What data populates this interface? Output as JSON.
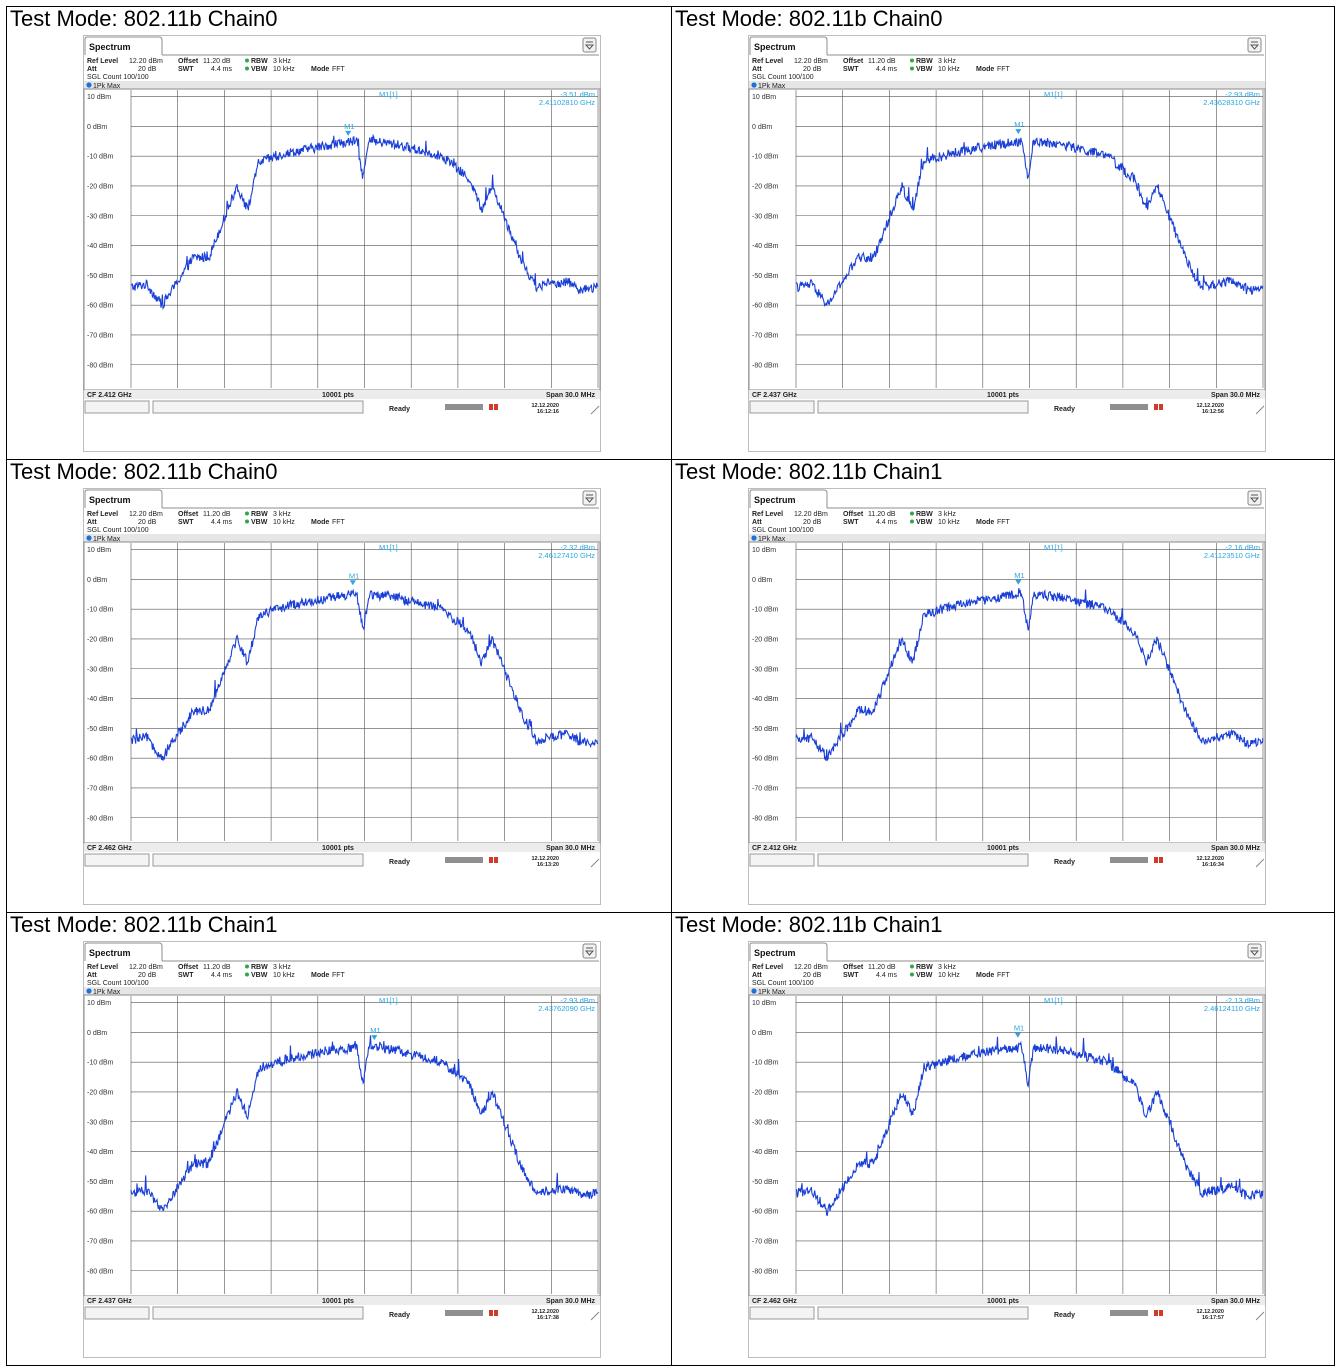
{
  "panels": [
    {
      "title": "Test Mode: 802.11b Chain0",
      "tab": "Spectrum",
      "ref_level_label": "Ref Level",
      "ref_level": "12.20 dBm",
      "offset_label": "Offset",
      "offset": "11.20 dB",
      "rbw_label": "RBW",
      "rbw": "3 kHz",
      "att_label": "Att",
      "att": "20 dB",
      "swt_label": "SWT",
      "swt": "4.4 ms",
      "vbw_label": "VBW",
      "vbw": "10 kHz",
      "mode_label": "Mode",
      "mode": "FFT",
      "sgl_count": "SGL Count 100/100",
      "trace_label": "1Pk Max",
      "marker_name": "M1[1]",
      "marker_tag": "M1",
      "marker_level": "-3.51 dBm",
      "marker_freq": "2.41102810 GHz",
      "cf": "CF 2.412 GHz",
      "pts": "10001 pts",
      "span": "Span 30.0 MHz",
      "status": "Ready",
      "date": "12.12.2020",
      "time": "16:12:16",
      "marker_pos": 0.465,
      "y_labels": [
        "10 dBm",
        "0 dBm",
        "-10 dBm",
        "-20 dBm",
        "-30 dBm",
        "-40 dBm",
        "-50 dBm",
        "-60 dBm",
        "-70 dBm",
        "-80 dBm"
      ]
    },
    {
      "title": "Test Mode: 802.11b Chain0",
      "tab": "Spectrum",
      "ref_level_label": "Ref Level",
      "ref_level": "12.20 dBm",
      "offset_label": "Offset",
      "offset": "11.20 dB",
      "rbw_label": "RBW",
      "rbw": "3 kHz",
      "att_label": "Att",
      "att": "20 dB",
      "swt_label": "SWT",
      "swt": "4.4 ms",
      "vbw_label": "VBW",
      "vbw": "10 kHz",
      "mode_label": "Mode",
      "mode": "FFT",
      "sgl_count": "SGL Count 100/100",
      "trace_label": "1Pk Max",
      "marker_name": "M1[1]",
      "marker_tag": "M1",
      "marker_level": "-2.93 dBm",
      "marker_freq": "2.43628310 GHz",
      "cf": "CF 2.437 GHz",
      "pts": "10001 pts",
      "span": "Span 30.0 MHz",
      "status": "Ready",
      "date": "12.12.2020",
      "time": "16:12:56",
      "marker_pos": 0.476,
      "y_labels": [
        "10 dBm",
        "0 dBm",
        "-10 dBm",
        "-20 dBm",
        "-30 dBm",
        "-40 dBm",
        "-50 dBm",
        "-60 dBm",
        "-70 dBm",
        "-80 dBm"
      ]
    },
    {
      "title": "Test Mode: 802.11b Chain0",
      "tab": "Spectrum",
      "ref_level_label": "Ref Level",
      "ref_level": "12.20 dBm",
      "offset_label": "Offset",
      "offset": "11.20 dB",
      "rbw_label": "RBW",
      "rbw": "3 kHz",
      "att_label": "Att",
      "att": "20 dB",
      "swt_label": "SWT",
      "swt": "4.4 ms",
      "vbw_label": "VBW",
      "vbw": "10 kHz",
      "mode_label": "Mode",
      "mode": "FFT",
      "sgl_count": "SGL Count 100/100",
      "trace_label": "1Pk Max",
      "marker_name": "M1[1]",
      "marker_tag": "M1",
      "marker_level": "-2.32 dBm",
      "marker_freq": "2.46127410 GHz",
      "cf": "CF 2.462 GHz",
      "pts": "10001 pts",
      "span": "Span 30.0 MHz",
      "status": "Ready",
      "date": "12.12.2020",
      "time": "16:13:20",
      "marker_pos": 0.475,
      "y_labels": [
        "10 dBm",
        "0 dBm",
        "-10 dBm",
        "-20 dBm",
        "-30 dBm",
        "-40 dBm",
        "-50 dBm",
        "-60 dBm",
        "-70 dBm",
        "-80 dBm"
      ]
    },
    {
      "title": "Test Mode: 802.11b Chain1",
      "tab": "Spectrum",
      "ref_level_label": "Ref Level",
      "ref_level": "12.20 dBm",
      "offset_label": "Offset",
      "offset": "11.20 dB",
      "rbw_label": "RBW",
      "rbw": "3 kHz",
      "att_label": "Att",
      "att": "20 dB",
      "swt_label": "SWT",
      "swt": "4.4 ms",
      "vbw_label": "VBW",
      "vbw": "10 kHz",
      "mode_label": "Mode",
      "mode": "FFT",
      "sgl_count": "SGL Count 100/100",
      "trace_label": "1Pk Max",
      "marker_name": "M1[1]",
      "marker_tag": "M1",
      "marker_level": "-2.16 dBm",
      "marker_freq": "2.41123510 GHz",
      "cf": "CF 2.412 GHz",
      "pts": "10001 pts",
      "span": "Span 30.0 MHz",
      "status": "Ready",
      "date": "12.12.2020",
      "time": "16:16:34",
      "marker_pos": 0.476,
      "y_labels": [
        "10 dBm",
        "0 dBm",
        "-10 dBm",
        "-20 dBm",
        "-30 dBm",
        "-40 dBm",
        "-50 dBm",
        "-60 dBm",
        "-70 dBm",
        "-80 dBm"
      ]
    },
    {
      "title": "Test Mode: 802.11b Chain1",
      "tab": "Spectrum",
      "ref_level_label": "Ref Level",
      "ref_level": "12.20 dBm",
      "offset_label": "Offset",
      "offset": "11.20 dB",
      "rbw_label": "RBW",
      "rbw": "3 kHz",
      "att_label": "Att",
      "att": "20 dB",
      "swt_label": "SWT",
      "swt": "4.4 ms",
      "vbw_label": "VBW",
      "vbw": "10 kHz",
      "mode_label": "Mode",
      "mode": "FFT",
      "sgl_count": "SGL Count 100/100",
      "trace_label": "1Pk Max",
      "marker_name": "M1[1]",
      "marker_tag": "M1",
      "marker_level": "-2.93 dBm",
      "marker_freq": "2.43762090 GHz",
      "cf": "CF 2.437 GHz",
      "pts": "10001 pts",
      "span": "Span 30.0 MHz",
      "status": "Ready",
      "date": "12.12.2020",
      "time": "16:17:38",
      "marker_pos": 0.521,
      "y_labels": [
        "10 dBm",
        "0 dBm",
        "-10 dBm",
        "-20 dBm",
        "-30 dBm",
        "-40 dBm",
        "-50 dBm",
        "-60 dBm",
        "-70 dBm",
        "-80 dBm"
      ]
    },
    {
      "title": "Test Mode: 802.11b Chain1",
      "tab": "Spectrum",
      "ref_level_label": "Ref Level",
      "ref_level": "12.20 dBm",
      "offset_label": "Offset",
      "offset": "11.20 dB",
      "rbw_label": "RBW",
      "rbw": "3 kHz",
      "att_label": "Att",
      "att": "20 dB",
      "swt_label": "SWT",
      "swt": "4.4 ms",
      "vbw_label": "VBW",
      "vbw": "10 kHz",
      "mode_label": "Mode",
      "mode": "FFT",
      "sgl_count": "SGL Count 100/100",
      "trace_label": "1Pk Max",
      "marker_name": "M1[1]",
      "marker_tag": "M1",
      "marker_level": "-2.13 dBm",
      "marker_freq": "2.46124110 GHz",
      "cf": "CF 2.462 GHz",
      "pts": "10001 pts",
      "span": "Span 30.0 MHz",
      "status": "Ready",
      "date": "12.12.2020",
      "time": "16:17:57",
      "marker_pos": 0.475,
      "y_labels": [
        "10 dBm",
        "0 dBm",
        "-10 dBm",
        "-20 dBm",
        "-30 dBm",
        "-40 dBm",
        "-50 dBm",
        "-60 dBm",
        "-70 dBm",
        "-80 dBm"
      ]
    }
  ],
  "colors": {
    "trace": "#1a3fd6",
    "marker": "#2aa6e0",
    "grid": "#555555",
    "frame": "#9a9a9a"
  },
  "chart_data": [
    {
      "type": "line",
      "series": [
        {
          "name": "1Pk Max",
          "x": [
            -15,
            -14,
            -13,
            -11,
            -10,
            -8.2,
            -7.5,
            -6.8,
            -5,
            -2,
            -0.5,
            -0.1,
            0.3,
            2,
            5,
            6.8,
            7.5,
            8.2,
            10,
            11,
            13,
            14,
            15
          ],
          "y": [
            -54,
            -53,
            -60,
            -44,
            -44,
            -20,
            -28,
            -12,
            -9,
            -6,
            -5,
            -17,
            -5,
            -6,
            -10,
            -18,
            -28,
            -20,
            -44,
            -54,
            -52,
            -55,
            -54
          ]
        }
      ],
      "xlim": [
        -15,
        15
      ],
      "ylim": [
        -87.8,
        12.2
      ],
      "grid": true
    },
    {
      "type": "line",
      "series": [
        {
          "name": "1Pk Max",
          "x": [
            -15,
            -14,
            -13,
            -11,
            -10,
            -8.2,
            -7.5,
            -6.8,
            -5,
            -2,
            -0.5,
            -0.1,
            0.3,
            2,
            5,
            6.8,
            7.5,
            8.2,
            10,
            11,
            13,
            14,
            15
          ],
          "y": [
            -54,
            -53,
            -60,
            -44,
            -44,
            -20,
            -28,
            -12,
            -9,
            -6,
            -5,
            -17,
            -5,
            -6,
            -10,
            -18,
            -28,
            -20,
            -44,
            -54,
            -52,
            -55,
            -54
          ]
        }
      ],
      "xlim": [
        -15,
        15
      ],
      "ylim": [
        -87.8,
        12.2
      ],
      "grid": true
    },
    {
      "type": "line",
      "series": [
        {
          "name": "1Pk Max",
          "x": [
            -15,
            -14,
            -13,
            -11,
            -10,
            -8.2,
            -7.5,
            -6.8,
            -5,
            -2,
            -0.5,
            -0.1,
            0.3,
            2,
            5,
            6.8,
            7.5,
            8.2,
            10,
            11,
            13,
            14,
            15
          ],
          "y": [
            -54,
            -53,
            -60,
            -44,
            -44,
            -20,
            -28,
            -12,
            -9,
            -6,
            -5,
            -17,
            -5,
            -6,
            -10,
            -18,
            -28,
            -20,
            -44,
            -54,
            -52,
            -55,
            -54
          ]
        }
      ],
      "xlim": [
        -15,
        15
      ],
      "ylim": [
        -87.8,
        12.2
      ],
      "grid": true
    },
    {
      "type": "line",
      "series": [
        {
          "name": "1Pk Max",
          "x": [
            -15,
            -14,
            -13,
            -11,
            -10,
            -8.2,
            -7.5,
            -6.8,
            -5,
            -2,
            -0.5,
            -0.1,
            0.3,
            2,
            5,
            6.8,
            7.5,
            8.2,
            10,
            11,
            13,
            14,
            15
          ],
          "y": [
            -54,
            -53,
            -60,
            -44,
            -44,
            -20,
            -28,
            -12,
            -9,
            -6,
            -5,
            -17,
            -5,
            -6,
            -10,
            -18,
            -28,
            -20,
            -44,
            -54,
            -52,
            -55,
            -54
          ]
        }
      ],
      "xlim": [
        -15,
        15
      ],
      "ylim": [
        -87.8,
        12.2
      ],
      "grid": true
    },
    {
      "type": "line",
      "series": [
        {
          "name": "1Pk Max",
          "x": [
            -15,
            -14,
            -13,
            -11,
            -10,
            -8.2,
            -7.5,
            -6.8,
            -5,
            -2,
            -0.5,
            -0.1,
            0.3,
            2,
            5,
            6.8,
            7.5,
            8.2,
            10,
            11,
            13,
            14,
            15
          ],
          "y": [
            -54,
            -53,
            -60,
            -44,
            -44,
            -20,
            -28,
            -12,
            -9,
            -6,
            -5,
            -17,
            -5,
            -6,
            -10,
            -18,
            -28,
            -20,
            -44,
            -54,
            -52,
            -55,
            -54
          ]
        }
      ],
      "xlim": [
        -15,
        15
      ],
      "ylim": [
        -87.8,
        12.2
      ],
      "grid": true
    },
    {
      "type": "line",
      "series": [
        {
          "name": "1Pk Max",
          "x": [
            -15,
            -14,
            -13,
            -11,
            -10,
            -8.2,
            -7.5,
            -6.8,
            -5,
            -2,
            -0.5,
            -0.1,
            0.3,
            2,
            5,
            6.8,
            7.5,
            8.2,
            10,
            11,
            13,
            14,
            15
          ],
          "y": [
            -54,
            -53,
            -60,
            -44,
            -44,
            -20,
            -28,
            -12,
            -9,
            -6,
            -5,
            -17,
            -5,
            -6,
            -10,
            -18,
            -28,
            -20,
            -44,
            -54,
            -52,
            -55,
            -54
          ]
        }
      ],
      "xlim": [
        -15,
        15
      ],
      "ylim": [
        -87.8,
        12.2
      ],
      "grid": true
    }
  ]
}
